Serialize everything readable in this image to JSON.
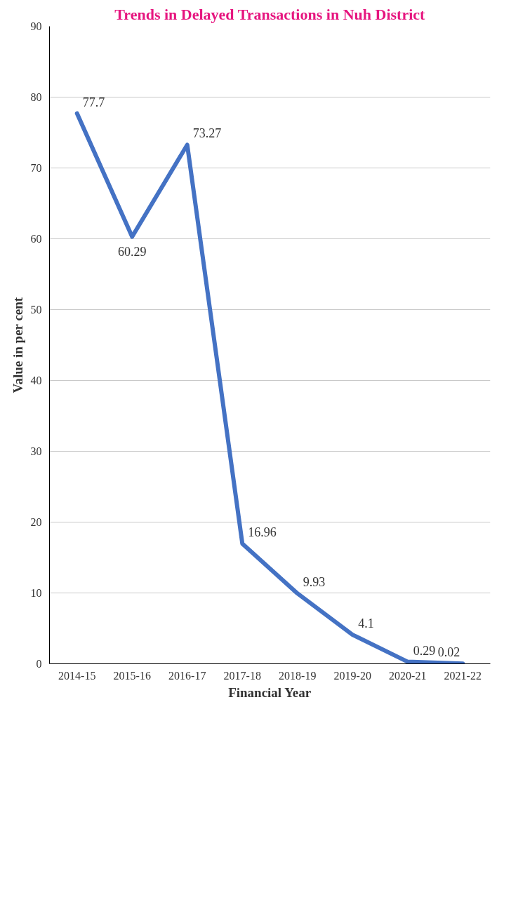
{
  "chart_data": {
    "type": "line",
    "title": "Trends in Delayed Transactions in Nuh District",
    "xlabel": "Financial Year",
    "ylabel": "Value in per cent",
    "categories": [
      "2014-15",
      "2015-16",
      "2016-17",
      "2017-18",
      "2018-19",
      "2019-20",
      "2020-21",
      "2021-22"
    ],
    "series": [
      {
        "color": "#4472c4",
        "values": [
          77.7,
          60.29,
          73.27,
          16.96,
          9.93,
          4.1,
          0.29,
          0.02
        ]
      }
    ],
    "ylim": [
      0,
      90
    ],
    "yticks": [
      0,
      10,
      20,
      30,
      40,
      50,
      60,
      70,
      80,
      90
    ],
    "grid": "y",
    "data_labels": true,
    "marker": "none",
    "line_style": "solid"
  }
}
